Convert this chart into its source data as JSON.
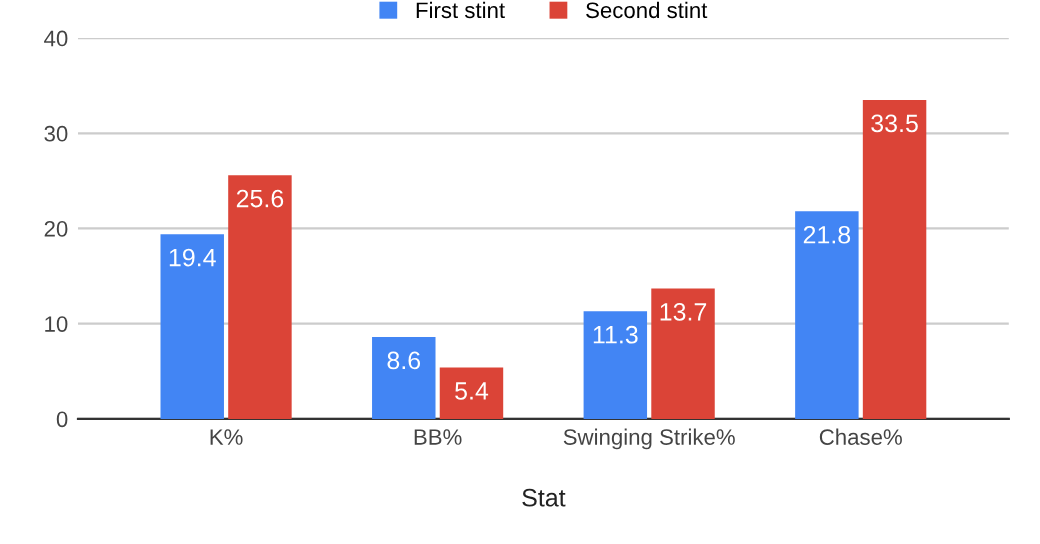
{
  "chart_data": {
    "type": "bar",
    "xlabel": "Stat",
    "categories": [
      "K%",
      "BB%",
      "Swinging Strike%",
      "Chase%"
    ],
    "series": [
      {
        "name": "First stint",
        "color": "#4285f4",
        "values": [
          19.4,
          8.6,
          11.3,
          21.8
        ]
      },
      {
        "name": "Second stint",
        "color": "#db4437",
        "values": [
          25.6,
          5.4,
          13.7,
          33.5
        ]
      }
    ],
    "ylim": [
      0,
      40
    ],
    "yticks": [
      0,
      10,
      20,
      30,
      40
    ],
    "grid": "y",
    "legend": "top",
    "data_labels": true
  }
}
